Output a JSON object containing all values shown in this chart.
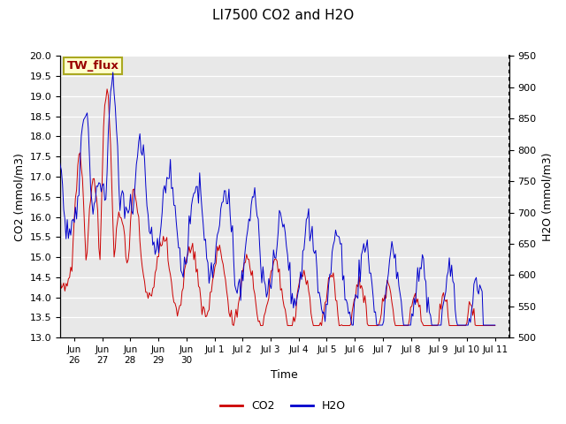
{
  "title": "LI7500 CO2 and H2O",
  "xlabel": "Time",
  "ylabel_left": "CO2 (mmol/m3)",
  "ylabel_right": "H2O (mmol/m3)",
  "co2_ylim": [
    13.0,
    20.0
  ],
  "h2o_ylim": [
    500,
    950
  ],
  "annotation_text": "TW_flux",
  "annotation_bg": "#ffffcc",
  "annotation_border": "#aaa820",
  "co2_color": "#cc0000",
  "h2o_color": "#0000cc",
  "bg_color": "#e8e8e8",
  "legend_co2": "CO2",
  "legend_h2o": "H2O",
  "xtick_labels": [
    "Jun\n26",
    "Jun\n27",
    "Jun\n28",
    "Jun\n29",
    "Jun\n30",
    "Jul 1",
    "Jul 2",
    "Jul 3",
    "Jul 4",
    "Jul 5",
    "Jul 6",
    "Jul 7",
    "Jul 8",
    "Jul 9",
    "Jul 10",
    "Jul 11"
  ],
  "title_fontsize": 11,
  "axis_fontsize": 9,
  "tick_fontsize": 8,
  "legend_fontsize": 9
}
